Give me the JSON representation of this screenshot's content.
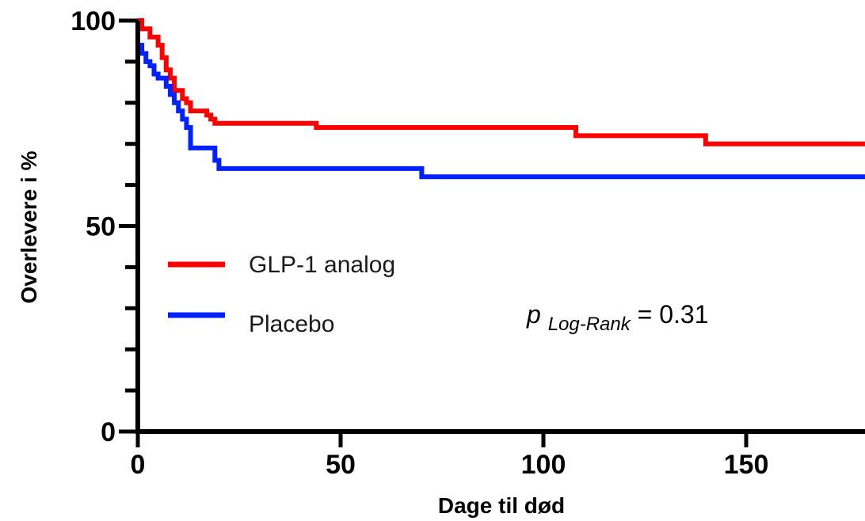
{
  "chart_data": {
    "type": "line",
    "title": "",
    "xlabel": "Dage til død",
    "ylabel": "Overlevere i %",
    "xlim": [
      0,
      180
    ],
    "ylim": [
      0,
      100
    ],
    "x_ticks": [
      0,
      50,
      100,
      150
    ],
    "y_ticks": [
      0,
      50,
      100
    ],
    "x_tick_labels": [
      "0",
      "50",
      "100",
      "150"
    ],
    "y_tick_labels": [
      "0",
      "50",
      "100"
    ],
    "y_minor_ticks": [
      10,
      20,
      30,
      40,
      60,
      70,
      80,
      90
    ],
    "grid": false,
    "legend_position": "left",
    "series": [
      {
        "name": "GLP-1 analog",
        "color": "#ff0000",
        "step": true,
        "points": [
          [
            0,
            100
          ],
          [
            1,
            98
          ],
          [
            3,
            96
          ],
          [
            5,
            94
          ],
          [
            6,
            91
          ],
          [
            7,
            88
          ],
          [
            8,
            86
          ],
          [
            9,
            83
          ],
          [
            11,
            81
          ],
          [
            12,
            80
          ],
          [
            13,
            78
          ],
          [
            17,
            77
          ],
          [
            18,
            76
          ],
          [
            19,
            75
          ],
          [
            44,
            74
          ],
          [
            108,
            72
          ],
          [
            140,
            70
          ],
          [
            180,
            70
          ]
        ]
      },
      {
        "name": "Placebo",
        "color": "#0022ff",
        "step": true,
        "points": [
          [
            0,
            94
          ],
          [
            1,
            92
          ],
          [
            2,
            90
          ],
          [
            3,
            89
          ],
          [
            4,
            87
          ],
          [
            5,
            86
          ],
          [
            7,
            84
          ],
          [
            8,
            82
          ],
          [
            9,
            80
          ],
          [
            10,
            78
          ],
          [
            11,
            76
          ],
          [
            12,
            74
          ],
          [
            13,
            69
          ],
          [
            19,
            66
          ],
          [
            20,
            64
          ],
          [
            70,
            62
          ],
          [
            180,
            62
          ]
        ]
      }
    ],
    "annotation": {
      "p_symbol": "p",
      "p_subscript": "Log-Rank",
      "p_value_text": " = 0.31"
    }
  }
}
